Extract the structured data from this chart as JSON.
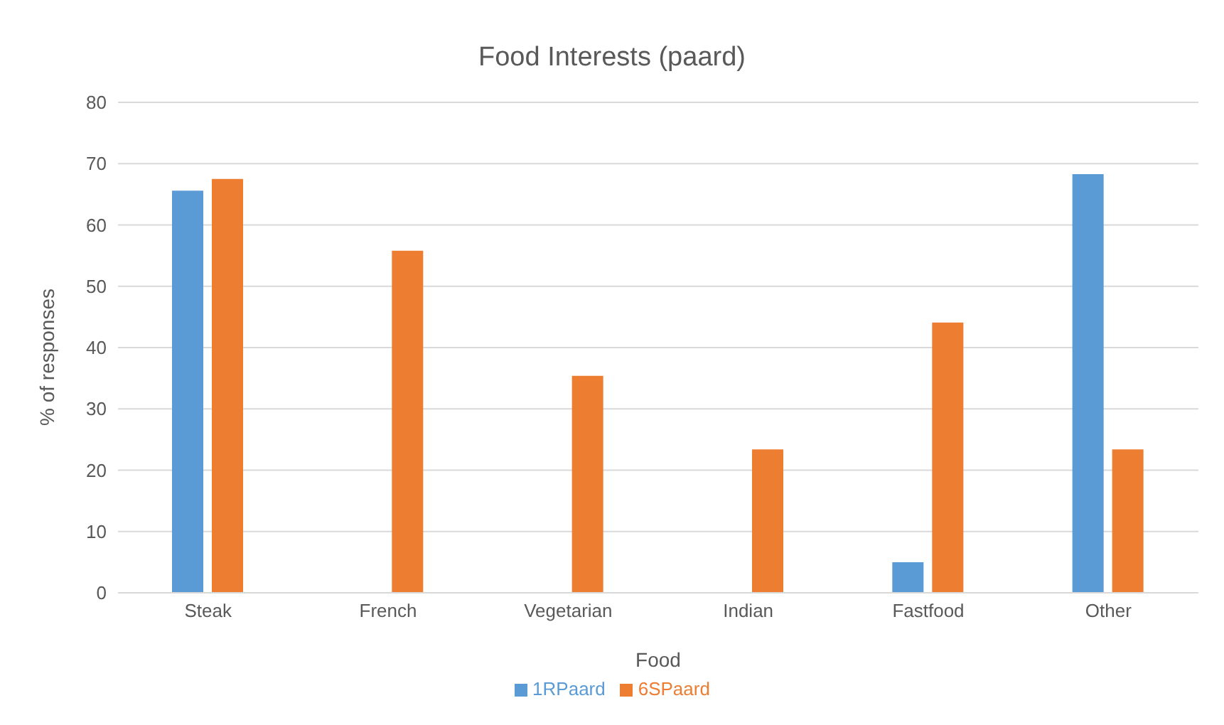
{
  "chart_data": {
    "type": "bar",
    "title": "Food Interests (paard)",
    "xlabel": "Food",
    "ylabel": "% of responses",
    "categories": [
      "Steak",
      "French",
      "Vegetarian",
      "Indian",
      "Fastfood",
      "Other"
    ],
    "series": [
      {
        "name": "1RPaard",
        "color": "#5b9bd5",
        "values": [
          65.6,
          0,
          0,
          0,
          5.0,
          68.3
        ]
      },
      {
        "name": "6SPaard",
        "color": "#ed7d31",
        "values": [
          67.5,
          55.8,
          35.4,
          23.4,
          44.1,
          23.4
        ]
      }
    ],
    "ylim": [
      0,
      80
    ],
    "yticks": [
      0,
      10,
      20,
      30,
      40,
      50,
      60,
      70,
      80
    ],
    "grid": "y",
    "legend": "bottom"
  }
}
